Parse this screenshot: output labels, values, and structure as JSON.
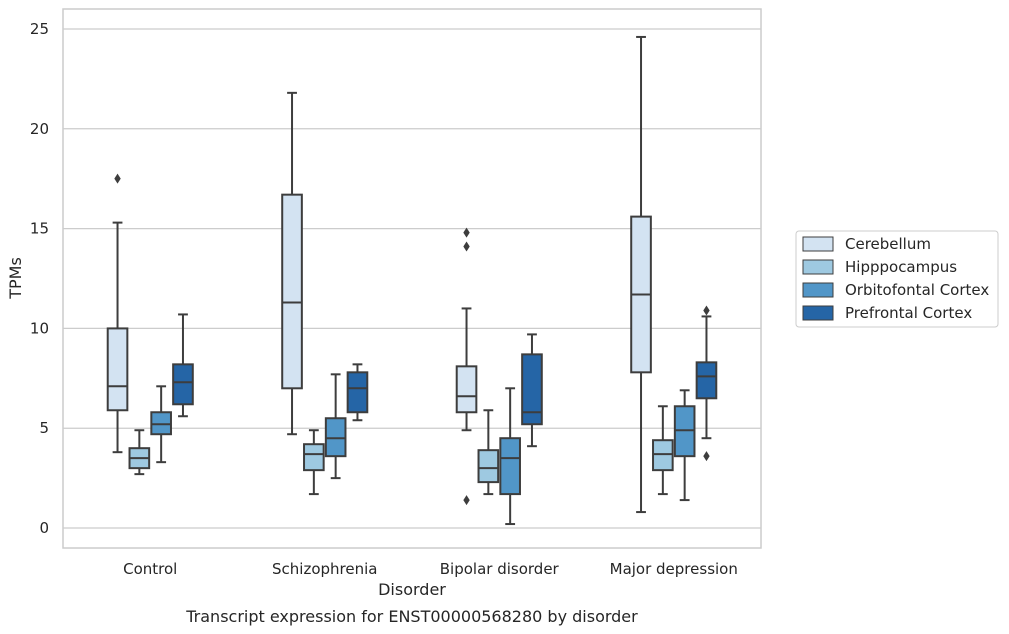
{
  "chart_data": {
    "type": "box",
    "xlabel": "Disorder",
    "ylabel": "TPMs",
    "caption": "Transcript expression for ENST00000568280 by disorder",
    "ylim": [
      -1,
      26
    ],
    "yticks": [
      0,
      5,
      10,
      15,
      20,
      25
    ],
    "grid": "horizontal",
    "legend_position": "right",
    "categories": [
      "Control",
      "Schizophrenia",
      "Bipolar disorder",
      "Major depression"
    ],
    "series": [
      {
        "name": "Cerebellum",
        "color": "#d3e3f2",
        "boxes": [
          {
            "whislo": 3.8,
            "q1": 5.9,
            "med": 7.1,
            "q3": 10.0,
            "whishi": 15.3,
            "fliers": [
              17.5
            ]
          },
          {
            "whislo": 4.7,
            "q1": 7.0,
            "med": 11.3,
            "q3": 16.7,
            "whishi": 21.8,
            "fliers": []
          },
          {
            "whislo": 4.9,
            "q1": 5.8,
            "med": 6.6,
            "q3": 8.1,
            "whishi": 11.0,
            "fliers": [
              14.8,
              14.1,
              1.4
            ]
          },
          {
            "whislo": 0.8,
            "q1": 7.8,
            "med": 11.7,
            "q3": 15.6,
            "whishi": 24.6,
            "fliers": []
          }
        ]
      },
      {
        "name": "Hipppocampus",
        "color": "#9ec9e1",
        "boxes": [
          {
            "whislo": 2.7,
            "q1": 3.0,
            "med": 3.5,
            "q3": 4.0,
            "whishi": 4.9,
            "fliers": []
          },
          {
            "whislo": 1.7,
            "q1": 2.9,
            "med": 3.7,
            "q3": 4.2,
            "whishi": 4.9,
            "fliers": []
          },
          {
            "whislo": 1.7,
            "q1": 2.3,
            "med": 3.0,
            "q3": 3.9,
            "whishi": 5.9,
            "fliers": []
          },
          {
            "whislo": 1.7,
            "q1": 2.9,
            "med": 3.7,
            "q3": 4.4,
            "whishi": 6.1,
            "fliers": []
          }
        ]
      },
      {
        "name": "Orbitofontal Cortex",
        "color": "#5196c8",
        "boxes": [
          {
            "whislo": 3.3,
            "q1": 4.7,
            "med": 5.2,
            "q3": 5.8,
            "whishi": 7.1,
            "fliers": []
          },
          {
            "whislo": 2.5,
            "q1": 3.6,
            "med": 4.5,
            "q3": 5.5,
            "whishi": 7.7,
            "fliers": []
          },
          {
            "whislo": 0.2,
            "q1": 1.7,
            "med": 3.5,
            "q3": 4.5,
            "whishi": 7.0,
            "fliers": []
          },
          {
            "whislo": 1.4,
            "q1": 3.6,
            "med": 4.9,
            "q3": 6.1,
            "whishi": 6.9,
            "fliers": []
          }
        ]
      },
      {
        "name": "Prefrontal Cortex",
        "color": "#2565a6",
        "boxes": [
          {
            "whislo": 5.6,
            "q1": 6.2,
            "med": 7.3,
            "q3": 8.2,
            "whishi": 10.7,
            "fliers": []
          },
          {
            "whislo": 5.4,
            "q1": 5.8,
            "med": 7.0,
            "q3": 7.8,
            "whishi": 8.2,
            "fliers": []
          },
          {
            "whislo": 4.1,
            "q1": 5.2,
            "med": 5.8,
            "q3": 8.7,
            "whishi": 9.7,
            "fliers": []
          },
          {
            "whislo": 4.5,
            "q1": 6.5,
            "med": 7.6,
            "q3": 8.3,
            "whishi": 10.6,
            "fliers": [
              10.9,
              3.6
            ]
          }
        ]
      }
    ]
  }
}
